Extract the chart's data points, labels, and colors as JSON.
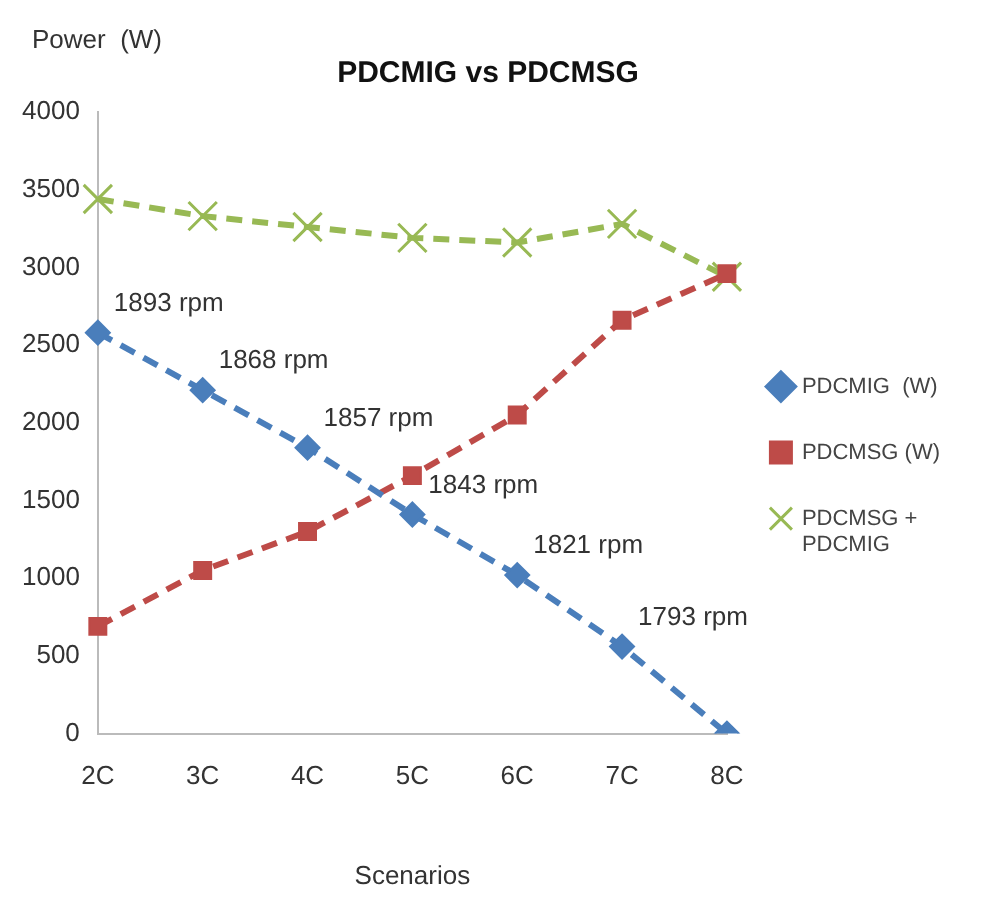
{
  "chart_data": {
    "type": "line",
    "title": "PDCMIG vs PDCMSG",
    "ylabel": "Power  (W)",
    "xlabel": "Scenarios",
    "categories": [
      "2C",
      "3C",
      "4C",
      "5C",
      "6C",
      "7C",
      "8C"
    ],
    "series": [
      {
        "name": "PDCMIG  (W)",
        "color": "#4a7ebb",
        "marker": "diamond",
        "values": [
          2580,
          2210,
          1840,
          1410,
          1020,
          560,
          0
        ]
      },
      {
        "name": "PDCMSG (W)",
        "color": "#be4b48",
        "marker": "square",
        "values": [
          690,
          1050,
          1300,
          1660,
          2050,
          2660,
          2960
        ]
      },
      {
        "name": "PDCMSG + PDCMIG",
        "color": "#98b954",
        "marker": "cross",
        "values": [
          3440,
          3330,
          3260,
          3190,
          3160,
          3280,
          2940
        ]
      }
    ],
    "ylim": [
      0,
      4000
    ],
    "yticks": [
      0,
      500,
      1000,
      1500,
      2000,
      2500,
      3000,
      3500,
      4000
    ],
    "grid": false,
    "legend": "right",
    "line_style": "dashed",
    "annotations": [
      {
        "text": "1893 rpm",
        "x": "2C",
        "y": 2580
      },
      {
        "text": "1868 rpm",
        "x": "3C",
        "y": 2210
      },
      {
        "text": "1857 rpm",
        "x": "4C",
        "y": 1840
      },
      {
        "text": "1843 rpm",
        "x": "5C",
        "y": 1410
      },
      {
        "text": "1821 rpm",
        "x": "6C",
        "y": 1020
      },
      {
        "text": "1793 rpm",
        "x": "7C",
        "y": 560
      }
    ]
  }
}
